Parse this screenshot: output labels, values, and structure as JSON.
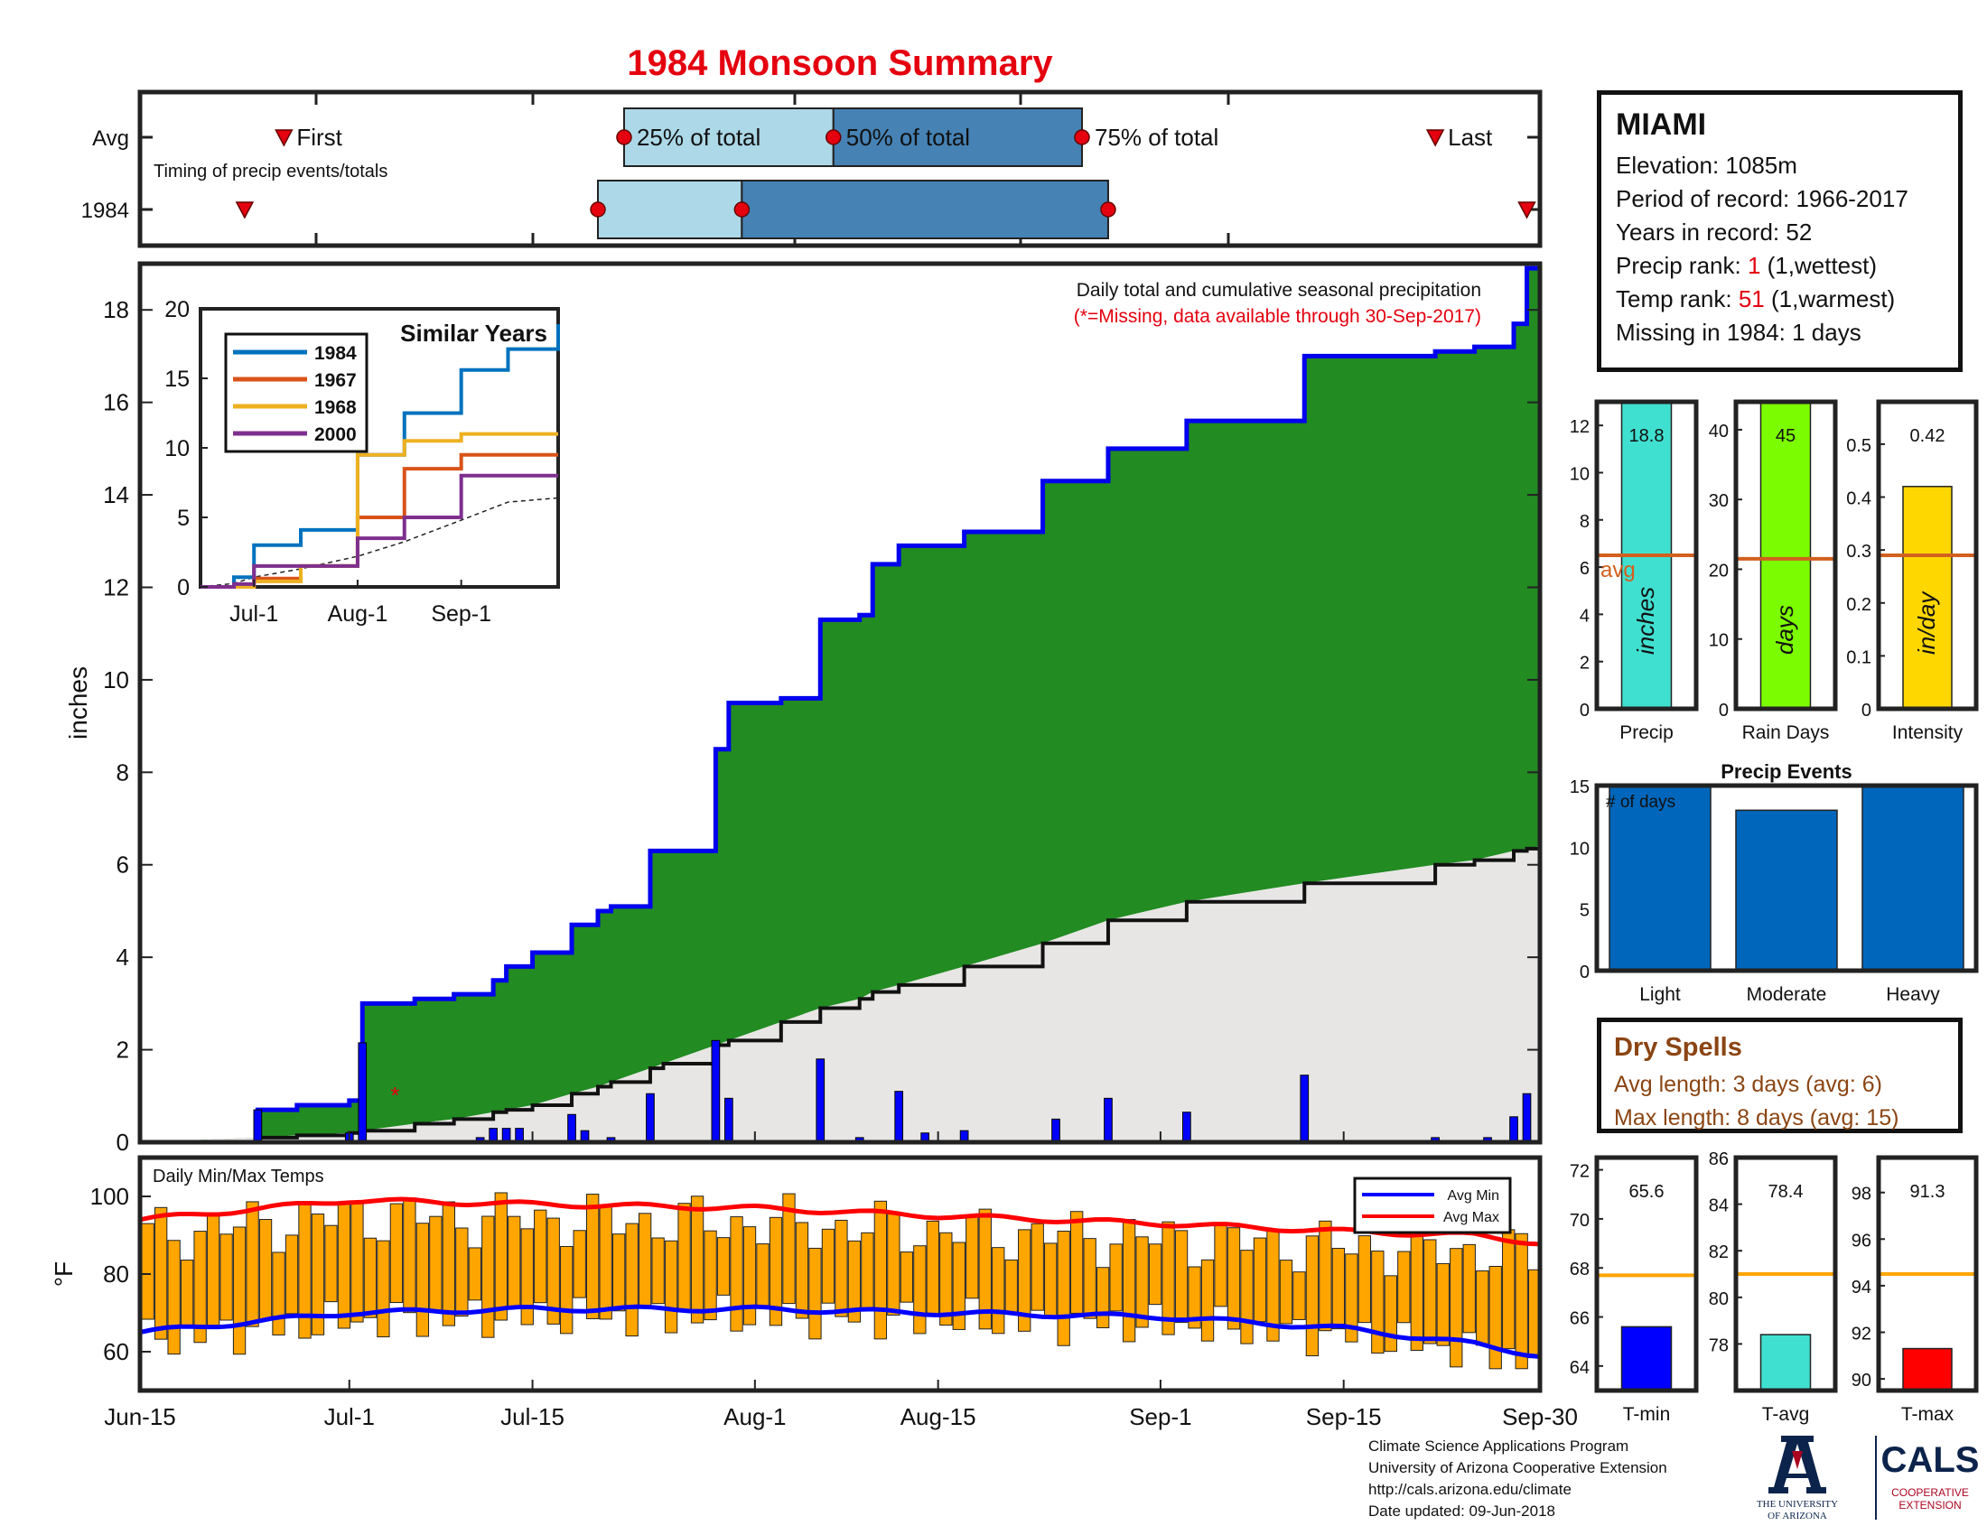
{
  "title": "1984 Monsoon Summary",
  "timing": {
    "row_labels": [
      "Avg",
      "1984"
    ],
    "subtitle": "Timing of precip events/totals",
    "markers": {
      "first": "First",
      "q25": "25% of total",
      "q50": "50% of total",
      "q75": "75% of total",
      "last": "Last"
    },
    "avg": {
      "first": "Jun-26",
      "q25": "Jul-22",
      "q50": "Aug-7",
      "q75": "Aug-26",
      "last": "Sep-22"
    },
    "year": {
      "first": "Jun-23",
      "q25": "Jul-20",
      "q50": "Jul-31",
      "q75": "Aug-28",
      "last": "Sep-29"
    }
  },
  "station": {
    "name": "MIAMI",
    "elevation_label": "Elevation: ",
    "elevation": "1085m",
    "period_label": "Period of record: ",
    "period": "1966-2017",
    "years_label": "Years in record: ",
    "years": "52",
    "precip_rank_label": "Precip rank: ",
    "precip_rank": "1",
    "precip_rank_note": " (1,wettest)",
    "temp_rank_label": "Temp rank: ",
    "temp_rank": "51",
    "temp_rank_note": " (1,warmest)",
    "missing_label": "Missing in 1984: ",
    "missing": "1 days"
  },
  "main_chart": {
    "ylabel": "inches",
    "yticks": [
      0,
      2,
      4,
      6,
      8,
      10,
      12,
      14,
      16,
      18
    ],
    "xticks": [
      "Jun-15",
      "Jul-1",
      "Jul-15",
      "Aug-1",
      "Aug-15",
      "Sep-1",
      "Sep-15",
      "Sep-30"
    ],
    "annotation_title": "Daily total and cumulative seasonal precipitation",
    "annotation_note": "(*=Missing, data available through 30-Sep-2017)",
    "missing_marker": "*"
  },
  "inset": {
    "title": "Similar Years",
    "yticks": [
      "0",
      "5",
      "10",
      "15",
      "20"
    ],
    "xticks": [
      "Jul-1",
      "Aug-1",
      "Sep-1"
    ],
    "legend": [
      "1984",
      "1967",
      "1968",
      "2000"
    ]
  },
  "summary_bars": [
    {
      "label": "Precip",
      "value": "18.8",
      "unit": "inches",
      "avg_label": "avg",
      "yticks": [
        "0",
        "2",
        "4",
        "6",
        "8",
        "10",
        "12"
      ]
    },
    {
      "label": "Rain Days",
      "value": "45",
      "unit": "days",
      "yticks": [
        "0",
        "10",
        "20",
        "30",
        "40"
      ]
    },
    {
      "label": "Intensity",
      "value": "0.42",
      "unit": "in/day",
      "yticks": [
        "0",
        "0.1",
        "0.2",
        "0.3",
        "0.4",
        "0.5"
      ]
    }
  ],
  "precip_events": {
    "title": "Precip Events",
    "ylabel_inside": "# of days",
    "yticks": [
      "0",
      "5",
      "10",
      "15"
    ],
    "categories": [
      "Light",
      "Moderate",
      "Heavy"
    ],
    "values": [
      15,
      13,
      15
    ]
  },
  "dry_spells": {
    "title": "Dry Spells",
    "avg_line": "Avg length: 3 days (avg: 6)",
    "max_line": "Max length: 8 days (avg: 15)"
  },
  "temp_chart": {
    "title": "Daily Min/Max Temps",
    "ylabel": "°F",
    "yticks": [
      "60",
      "80",
      "100"
    ],
    "legend": [
      "Avg Min",
      "Avg Max"
    ]
  },
  "temp_summary": [
    {
      "label": "T-min",
      "value": "65.6",
      "yticks": [
        "64",
        "66",
        "68",
        "70",
        "72"
      ],
      "avg": 67.7,
      "min": 63,
      "max": 72.5
    },
    {
      "label": "T-avg",
      "value": "78.4",
      "yticks": [
        "78",
        "80",
        "82",
        "84",
        "86"
      ],
      "avg": 81.0,
      "min": 76,
      "max": 86
    },
    {
      "label": "T-max",
      "value": "91.3",
      "yticks": [
        "90",
        "92",
        "94",
        "96",
        "98"
      ],
      "avg": 94.5,
      "min": 89.5,
      "max": 99.5
    }
  ],
  "credits": [
    "Climate Science Applications Program",
    "University of Arizona Cooperative Extension",
    "http://cals.arizona.edu/climate",
    " Date updated: 09-Jun-2018"
  ],
  "logos": {
    "ua_line1": "THE UNIVERSITY",
    "ua_line2": "OF ARIZONA",
    "cals": "CALS",
    "cals_line1": "COOPERATIVE",
    "cals_line2": "EXTENSION"
  },
  "colors": {
    "green": "#228b22",
    "blue_line": "#0000ee",
    "normal_fill": "#e8e6e5",
    "teal": "#40e0d0",
    "lime": "#7cfc00",
    "gold": "#ffd700",
    "avg_line": "#d2601e",
    "event_bar": "#0066bb",
    "orange": "#ffa500",
    "tmin": "#0000ff",
    "tmax": "#ff0000",
    "box_light": "#acd8e7",
    "box_dark": "#4682b4"
  },
  "chart_data": [
    {
      "type": "area",
      "title": "Daily total and cumulative seasonal precipitation",
      "ylabel": "inches",
      "ylim": [
        0,
        19
      ],
      "x": [
        "Jun-15",
        "Jun-24",
        "Jun-27",
        "Jul-1",
        "Jul-2",
        "Jul-6",
        "Jul-9",
        "Jul-12",
        "Jul-13",
        "Jul-15",
        "Jul-18",
        "Jul-20",
        "Jul-21",
        "Jul-24",
        "Jul-25",
        "Jul-29",
        "Jul-30",
        "Aug-3",
        "Aug-6",
        "Aug-9",
        "Aug-10",
        "Aug-12",
        "Aug-17",
        "Aug-23",
        "Aug-28",
        "Sep-3",
        "Sep-12",
        "Sep-22",
        "Sep-25",
        "Sep-28",
        "Sep-29",
        "Sep-30"
      ],
      "series": [
        {
          "name": "1984 cumulative",
          "values": [
            0,
            0.7,
            0.8,
            0.9,
            3.0,
            3.1,
            3.2,
            3.5,
            3.8,
            4.1,
            4.7,
            5.0,
            5.1,
            6.3,
            6.3,
            8.5,
            9.5,
            9.6,
            11.3,
            11.4,
            12.5,
            12.9,
            13.2,
            14.3,
            15.0,
            15.6,
            17.0,
            17.1,
            17.2,
            17.7,
            18.9,
            18.9
          ]
        },
        {
          "name": "Average cumulative",
          "values": [
            0,
            0.1,
            0.15,
            0.2,
            0.25,
            0.4,
            0.5,
            0.65,
            0.7,
            0.8,
            1.05,
            1.2,
            1.3,
            1.6,
            1.7,
            2.1,
            2.2,
            2.6,
            2.9,
            3.1,
            3.25,
            3.4,
            3.8,
            4.3,
            4.8,
            5.2,
            5.6,
            6.0,
            6.1,
            6.3,
            6.35,
            6.4
          ]
        }
      ],
      "daily_bars": [
        {
          "x": "Jun-24",
          "value": 0.7
        },
        {
          "x": "Jul-1",
          "value": 0.2
        },
        {
          "x": "Jul-2",
          "value": 2.15
        },
        {
          "x": "Jul-11",
          "value": 0.1
        },
        {
          "x": "Jul-12",
          "value": 0.3
        },
        {
          "x": "Jul-13",
          "value": 0.3
        },
        {
          "x": "Jul-14",
          "value": 0.3
        },
        {
          "x": "Jul-18",
          "value": 0.6
        },
        {
          "x": "Jul-19",
          "value": 0.25
        },
        {
          "x": "Jul-21",
          "value": 0.1
        },
        {
          "x": "Jul-24",
          "value": 1.05
        },
        {
          "x": "Jul-29",
          "value": 2.2
        },
        {
          "x": "Jul-30",
          "value": 0.95
        },
        {
          "x": "Aug-6",
          "value": 1.8
        },
        {
          "x": "Aug-9",
          "value": 0.1
        },
        {
          "x": "Aug-12",
          "value": 1.1
        },
        {
          "x": "Aug-14",
          "value": 0.2
        },
        {
          "x": "Aug-17",
          "value": 0.25
        },
        {
          "x": "Aug-24",
          "value": 0.5
        },
        {
          "x": "Aug-28",
          "value": 0.95
        },
        {
          "x": "Sep-3",
          "value": 0.65
        },
        {
          "x": "Sep-12",
          "value": 1.45
        },
        {
          "x": "Sep-22",
          "value": 0.1
        },
        {
          "x": "Sep-26",
          "value": 0.1
        },
        {
          "x": "Sep-28",
          "value": 0.55
        },
        {
          "x": "Sep-29",
          "value": 1.05
        }
      ]
    },
    {
      "type": "line",
      "title": "Similar Years",
      "x": [
        "Jun-15",
        "Jun-25",
        "Jul-1",
        "Jul-15",
        "Aug-1",
        "Aug-15",
        "Sep-1",
        "Sep-15",
        "Sep-30"
      ],
      "ylim": [
        0,
        20
      ],
      "series": [
        {
          "name": "1984",
          "values": [
            0,
            0.7,
            3.0,
            4.1,
            9.5,
            12.5,
            15.6,
            17.1,
            18.9
          ]
        },
        {
          "name": "1967",
          "values": [
            0,
            0.1,
            0.6,
            1.5,
            5.0,
            8.5,
            9.5,
            9.5,
            9.5
          ]
        },
        {
          "name": "1968",
          "values": [
            0,
            0,
            0.4,
            1.5,
            9.5,
            10.5,
            11.0,
            11.0,
            11.0
          ]
        },
        {
          "name": "2000",
          "values": [
            0,
            0.2,
            1.5,
            1.5,
            3.5,
            5.0,
            8.0,
            8.0,
            8.0
          ]
        }
      ]
    },
    {
      "type": "bar",
      "categories": [
        "Light",
        "Moderate",
        "Heavy"
      ],
      "values": [
        15,
        13,
        15
      ],
      "title": "Precip Events",
      "ylim": [
        0,
        15
      ]
    },
    {
      "type": "bar",
      "title": "Daily Min/Max Temps",
      "ylabel": "°F",
      "ylim": [
        50,
        110
      ],
      "series": [
        {
          "name": "Avg Max",
          "values": [
            94,
            99,
            98,
            97,
            95,
            93,
            91,
            90,
            88
          ]
        },
        {
          "name": "Avg Min",
          "values": [
            65,
            70,
            71,
            71,
            70,
            69,
            66,
            62,
            59
          ]
        }
      ],
      "x": [
        "Jun-15",
        "Jul-1",
        "Jul-15",
        "Aug-1",
        "Aug-15",
        "Sep-1",
        "Sep-15",
        "Sep-25",
        "Sep-30"
      ]
    },
    {
      "type": "bar",
      "categories": [
        "Precip",
        "Rain Days",
        "Intensity"
      ],
      "values": [
        18.8,
        45,
        0.42
      ],
      "averages": [
        6.5,
        21.5,
        0.29
      ]
    },
    {
      "type": "bar",
      "categories": [
        "T-min",
        "T-avg",
        "T-max"
      ],
      "values": [
        65.6,
        78.4,
        91.3
      ],
      "averages": [
        67.7,
        81.0,
        94.5
      ]
    }
  ]
}
